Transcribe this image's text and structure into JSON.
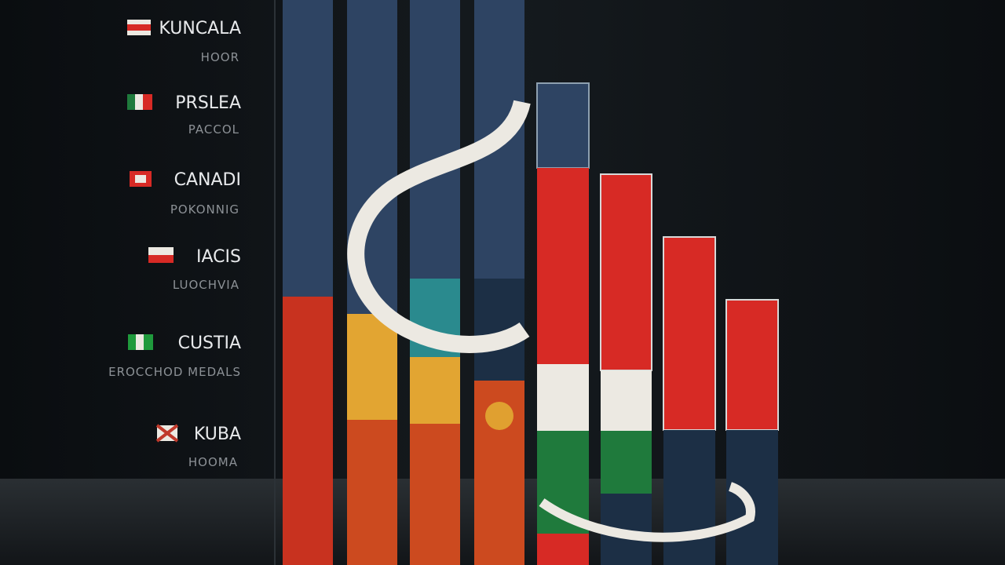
{
  "legend": [
    {
      "name": "KUNCALA",
      "sub": "HOOR"
    },
    {
      "name": "PRSLEA",
      "sub": "PACCOL"
    },
    {
      "name": "CANADI",
      "sub": "POKONNIG"
    },
    {
      "name": "IACIS",
      "sub": "LUOCHVIA"
    },
    {
      "name": "CUSTIA",
      "sub": "EROCCHOD MEDALS"
    },
    {
      "name": "KUBA",
      "sub": "HOOMA"
    }
  ]
}
